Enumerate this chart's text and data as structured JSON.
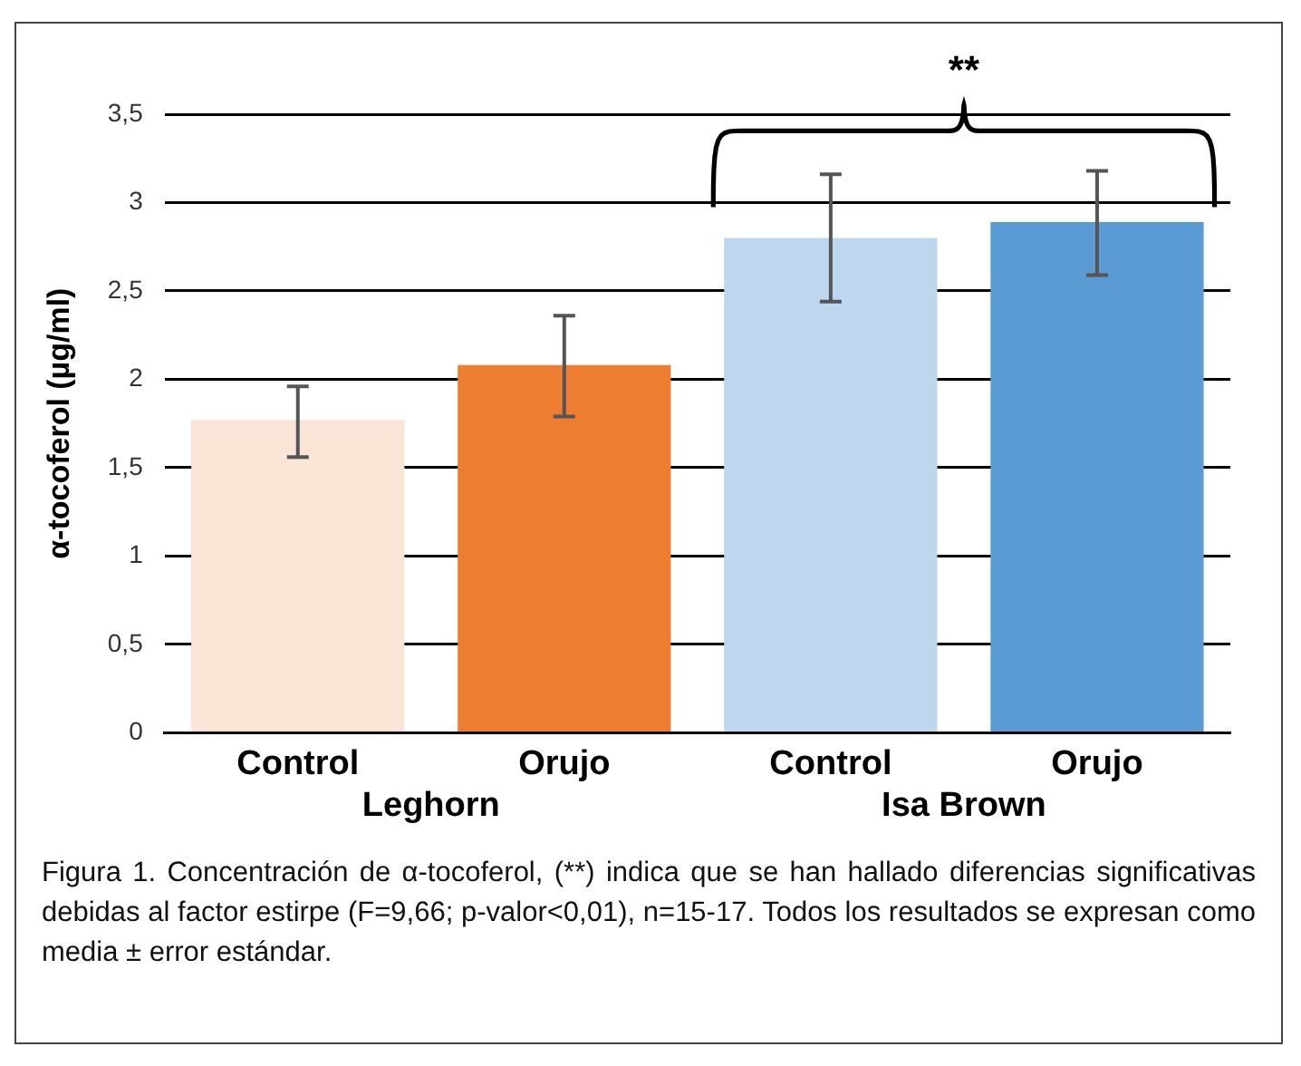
{
  "chart_data": {
    "type": "bar",
    "ylabel": "α-tocoferol (µg/ml)",
    "categories": [
      "Control",
      "Orujo",
      "Control",
      "Orujo"
    ],
    "values": [
      1.77,
      2.08,
      2.8,
      2.89
    ],
    "colors": [
      "#f9e4d6",
      "#ed7d31",
      "#bdd7ee",
      "#5b9bd5"
    ],
    "errors": [
      [
        1.56,
        1.96
      ],
      [
        1.79,
        2.36
      ],
      [
        2.44,
        3.16
      ],
      [
        2.59,
        3.18
      ]
    ],
    "ylim": [
      0,
      3.5
    ],
    "yticks": [
      0,
      {
        "value": 0.5,
        "label": "0,5"
      },
      1,
      {
        "value": 1.5,
        "label": "1,5"
      },
      2,
      {
        "value": 2.5,
        "label": "2,5"
      },
      3,
      {
        "value": 3.5,
        "label": "3,5"
      }
    ],
    "grid": "y",
    "legend": false,
    "annotations": [
      "**",
      "Leghorn",
      "Isa Brown",
      "Figura 1. Concentración de α-tocoferol, (**) indica que se han hallado diferencias significativas debidas al factor estirpe (F=9,66; p-valor<0,01), n=15-17. Todos los resultados se expresan como media ± error estándar."
    ]
  }
}
